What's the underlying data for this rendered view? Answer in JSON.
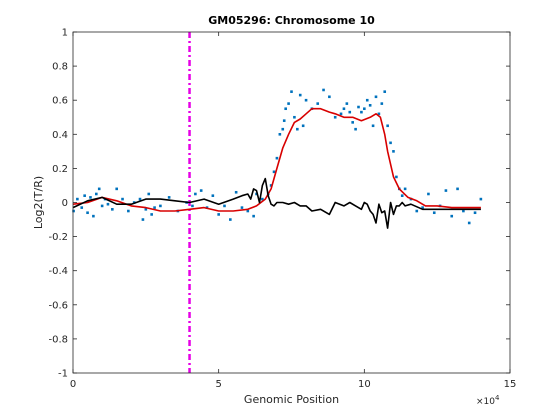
{
  "chart_data": {
    "type": "scatter",
    "title": "GM05296: Chromosome 10",
    "xlabel": "Genomic Position",
    "ylabel": "Log2(T/R)",
    "x_exponent_label": "×10",
    "x_exponent_power": "4",
    "xlim": [
      0,
      150000
    ],
    "ylim": [
      -1,
      1
    ],
    "x_ticks": [
      0,
      50000,
      100000,
      150000
    ],
    "x_tick_labels": [
      "0",
      "5",
      "10",
      "15"
    ],
    "y_ticks": [
      -1,
      -0.8,
      -0.6,
      -0.4,
      -0.2,
      0,
      0.2,
      0.4,
      0.6,
      0.8,
      1
    ],
    "y_tick_labels": [
      "-1",
      "-0.8",
      "-0.6",
      "-0.4",
      "-0.2",
      "0",
      "0.2",
      "0.4",
      "0.6",
      "0.8",
      "1"
    ],
    "grid": false,
    "colors": {
      "points": "#0072BD",
      "smooth": "#D80000",
      "diff": "#000000",
      "breakpoint": "#E600E6"
    },
    "breakpoint_x": 40000,
    "series": [
      {
        "kind": "points",
        "x": [
          200,
          1500,
          3000,
          4000,
          5000,
          6000,
          7000,
          8000,
          9000,
          10000,
          11000,
          12000,
          13500,
          15000,
          17000,
          19000,
          21000,
          23000,
          24000,
          25000,
          26000,
          27000,
          28000,
          30000,
          33000,
          36000,
          39000,
          41000,
          42000,
          44000,
          46000,
          48000,
          50000,
          52000,
          54000,
          56000,
          58000,
          60000,
          62000,
          63000,
          65000,
          67000,
          68000,
          69000,
          70000,
          71000,
          72000,
          72500,
          73000,
          74000,
          75000,
          76000,
          77000,
          78000,
          79000,
          80000,
          82000,
          84000,
          86000,
          88000,
          90000,
          92000,
          93000,
          94000,
          95000,
          96000,
          97000,
          98000,
          99000,
          100000,
          101000,
          102000,
          103000,
          104000,
          105000,
          106000,
          107000,
          108000,
          109000,
          110000,
          111000,
          112000,
          113000,
          114000,
          116000,
          118000,
          120000,
          122000,
          124000,
          126000,
          128000,
          130000,
          132000,
          134000,
          136000,
          138000,
          140000
        ],
        "y": [
          -0.05,
          0.02,
          -0.03,
          0.04,
          -0.06,
          0.03,
          -0.08,
          0.05,
          0.08,
          -0.02,
          0.02,
          -0.01,
          -0.04,
          0.08,
          0.02,
          -0.05,
          0.0,
          0.02,
          -0.1,
          -0.04,
          0.05,
          -0.07,
          -0.03,
          -0.02,
          0.03,
          -0.05,
          0.0,
          -0.02,
          0.05,
          0.07,
          -0.03,
          0.04,
          -0.07,
          -0.02,
          -0.1,
          0.06,
          -0.03,
          -0.05,
          -0.08,
          0.05,
          0.02,
          0.05,
          0.1,
          0.18,
          0.26,
          0.4,
          0.43,
          0.48,
          0.55,
          0.58,
          0.65,
          0.5,
          0.43,
          0.63,
          0.45,
          0.6,
          0.55,
          0.58,
          0.66,
          0.62,
          0.5,
          0.52,
          0.55,
          0.58,
          0.53,
          0.47,
          0.43,
          0.56,
          0.53,
          0.55,
          0.6,
          0.57,
          0.45,
          0.62,
          0.52,
          0.58,
          0.65,
          0.45,
          0.35,
          0.3,
          0.15,
          0.08,
          0.04,
          0.08,
          0.02,
          -0.05,
          -0.03,
          0.05,
          -0.06,
          -0.02,
          0.07,
          -0.08,
          0.08,
          -0.05,
          -0.12,
          -0.06,
          0.02
        ]
      },
      {
        "kind": "smooth",
        "x": [
          0,
          5000,
          10000,
          15000,
          20000,
          25000,
          30000,
          35000,
          40000,
          45000,
          50000,
          55000,
          60000,
          63000,
          66000,
          68000,
          70000,
          72000,
          74000,
          76000,
          78000,
          80000,
          82000,
          85000,
          88000,
          90000,
          93000,
          96000,
          99000,
          102000,
          104000,
          105500,
          107000,
          108000,
          110000,
          112000,
          115000,
          118000,
          121000,
          125000,
          130000,
          135000,
          140000
        ],
        "y": [
          -0.01,
          0.0,
          0.03,
          0.01,
          -0.02,
          -0.03,
          -0.05,
          -0.05,
          -0.04,
          -0.03,
          -0.05,
          -0.05,
          -0.04,
          -0.02,
          0.02,
          0.08,
          0.2,
          0.32,
          0.4,
          0.47,
          0.49,
          0.52,
          0.55,
          0.55,
          0.53,
          0.52,
          0.5,
          0.5,
          0.48,
          0.5,
          0.52,
          0.5,
          0.4,
          0.3,
          0.15,
          0.08,
          0.03,
          0.01,
          -0.02,
          -0.02,
          -0.03,
          -0.03,
          -0.03
        ]
      },
      {
        "kind": "diff",
        "x": [
          0,
          5000,
          10000,
          15000,
          20000,
          25000,
          30000,
          35000,
          40000,
          45000,
          50000,
          55000,
          58000,
          60000,
          61000,
          62000,
          63000,
          64000,
          65000,
          66000,
          67000,
          68000,
          69000,
          70000,
          72000,
          74000,
          76000,
          78000,
          80000,
          82000,
          85000,
          88000,
          90000,
          93000,
          95000,
          97000,
          99000,
          100000,
          101000,
          102000,
          103000,
          104000,
          105000,
          106000,
          107000,
          108000,
          109000,
          110000,
          111000,
          112000,
          113000,
          114000,
          116000,
          120000,
          125000,
          130000,
          135000,
          140000
        ],
        "y": [
          -0.03,
          0.01,
          0.03,
          -0.01,
          -0.01,
          0.02,
          0.02,
          0.01,
          0.0,
          0.02,
          -0.01,
          0.02,
          0.04,
          0.05,
          0.02,
          0.08,
          0.07,
          0.0,
          0.1,
          0.14,
          0.04,
          -0.01,
          -0.02,
          0.0,
          0.0,
          -0.01,
          0.0,
          -0.02,
          -0.02,
          -0.05,
          -0.04,
          -0.07,
          0.0,
          -0.02,
          0.0,
          -0.02,
          -0.04,
          0.0,
          -0.01,
          -0.05,
          -0.07,
          -0.12,
          -0.01,
          -0.06,
          -0.05,
          -0.15,
          0.0,
          -0.07,
          -0.02,
          -0.02,
          0.0,
          -0.02,
          -0.01,
          -0.04,
          -0.04,
          -0.04,
          -0.04,
          -0.04
        ]
      }
    ]
  }
}
